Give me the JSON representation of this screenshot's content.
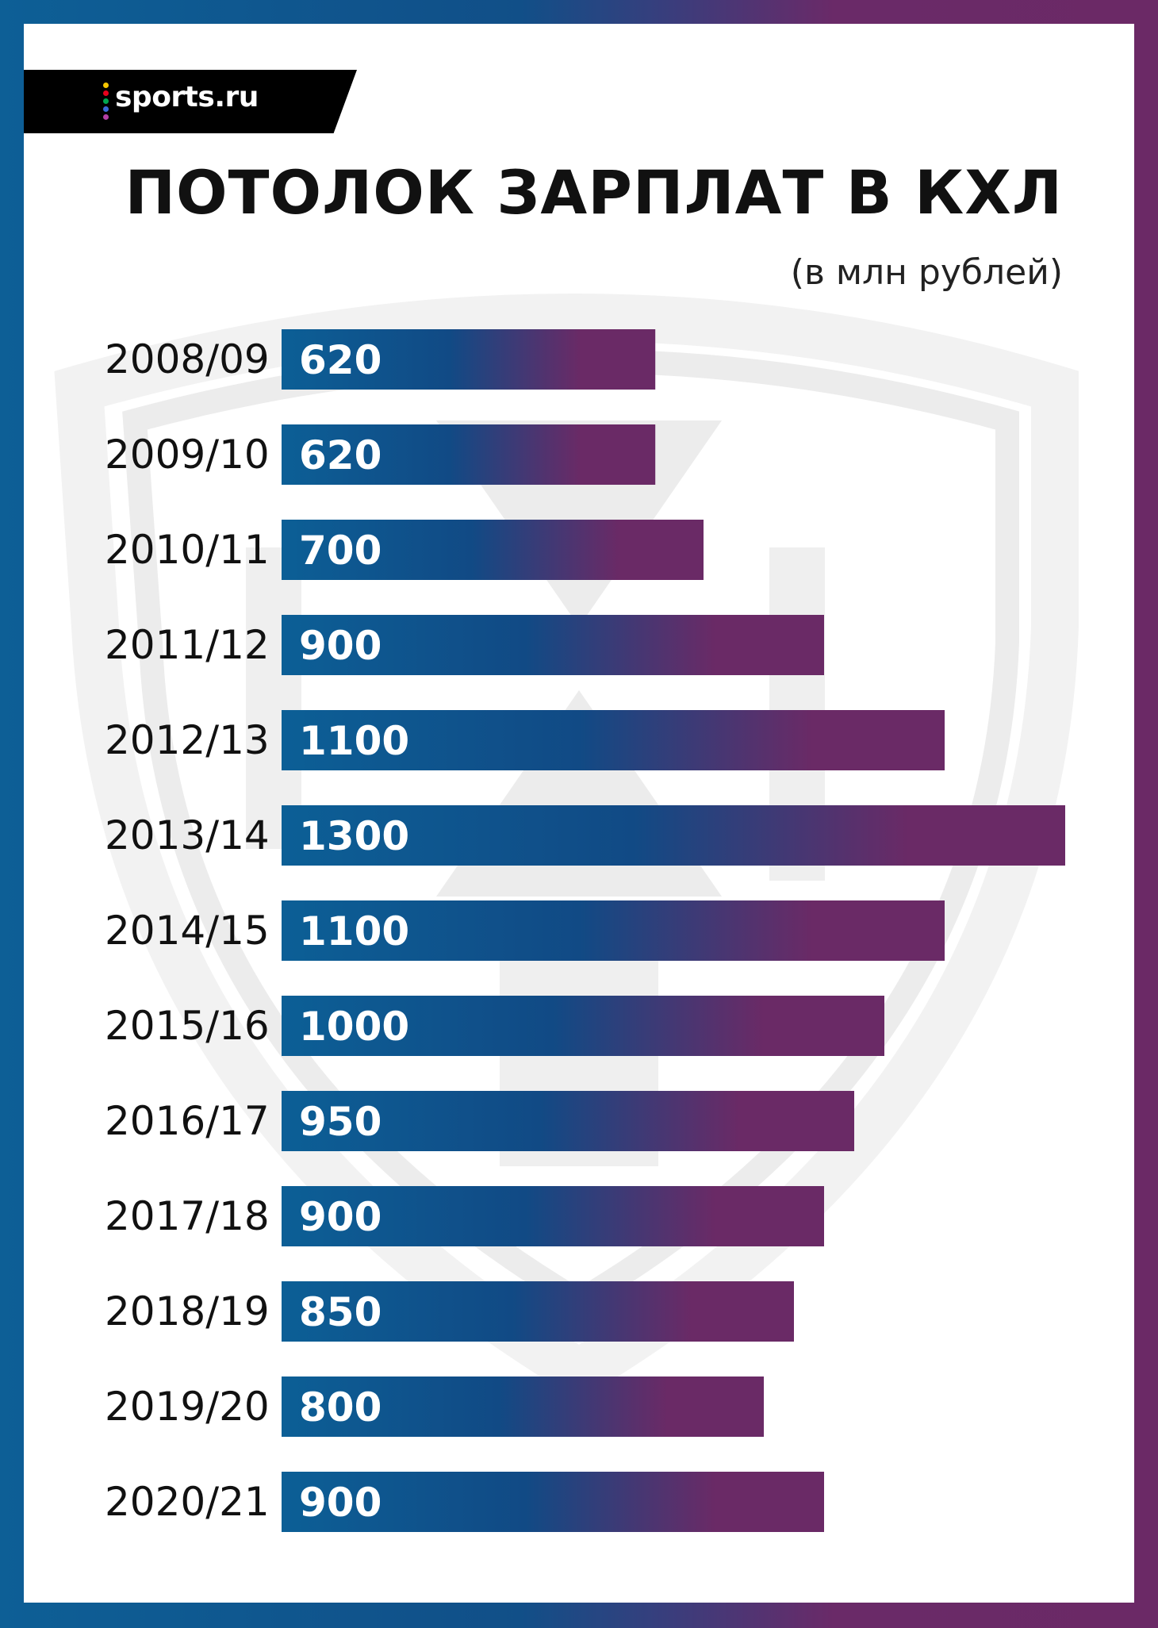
{
  "brand": {
    "name": "sports.ru",
    "dot_colors": [
      "#f5c600",
      "#e8001c",
      "#00a651",
      "#3a68d8",
      "#b43fa5"
    ]
  },
  "header": {
    "title": "ПОТОЛОК ЗАРПЛАТ В КХЛ",
    "subtitle": "(в млн рублей)"
  },
  "colors": {
    "bar_start": "#0c5f96",
    "bar_mid": "#114a85",
    "bar_end": "#6a2a66",
    "watermark": "#efefef"
  },
  "chart_data": {
    "type": "bar",
    "orientation": "horizontal",
    "title": "ПОТОЛОК ЗАРПЛАТ В КХЛ",
    "subtitle": "(в млн рублей)",
    "xlabel": "",
    "ylabel": "",
    "categories": [
      "2008/09",
      "2009/10",
      "2010/11",
      "2011/12",
      "2012/13",
      "2013/14",
      "2014/15",
      "2015/16",
      "2016/17",
      "2017/18",
      "2018/19",
      "2019/20",
      "2020/21"
    ],
    "values": [
      620,
      620,
      700,
      900,
      1100,
      1300,
      1100,
      1000,
      950,
      900,
      850,
      800,
      900
    ],
    "data_labels": [
      "620",
      "620",
      "700",
      "900",
      "1100",
      "1300",
      "1100",
      "1000",
      "950",
      "900",
      "850",
      "800",
      "900"
    ],
    "xlim": [
      0,
      1300
    ],
    "grid": false,
    "legend": "none"
  }
}
